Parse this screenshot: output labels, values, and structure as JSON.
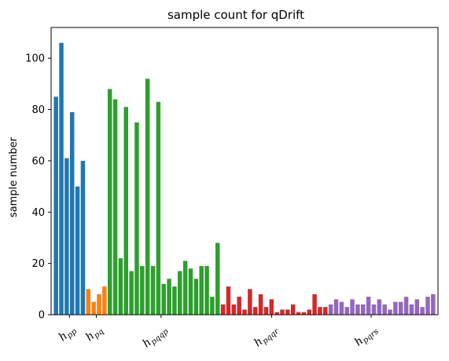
{
  "chart_data": {
    "type": "bar",
    "title": "sample count for qDrift",
    "xlabel": "",
    "ylabel": "sample number",
    "ylim": [
      0,
      112
    ],
    "yticks": [
      0,
      20,
      40,
      60,
      80,
      100
    ],
    "grid": false,
    "x_group_labels": [
      {
        "main": "h",
        "sub": "pp",
        "center_index": 2.5
      },
      {
        "main": "h",
        "sub": "pq",
        "center_index": 7.5
      },
      {
        "main": "h",
        "sub": "pqqp",
        "center_index": 19.5
      },
      {
        "main": "h",
        "sub": "pqqr",
        "center_index": 40
      },
      {
        "main": "h",
        "sub": "pqrs",
        "center_index": 58.5
      }
    ],
    "series": [
      {
        "color": "#1f77b4",
        "start_index": 0,
        "values": [
          85,
          106,
          61,
          79,
          50,
          60
        ]
      },
      {
        "color": "#ff7f0e",
        "start_index": 6,
        "values": [
          10,
          5,
          8,
          11
        ]
      },
      {
        "color": "#2ca02c",
        "start_index": 10,
        "values": [
          88,
          84,
          22,
          81,
          17,
          75,
          19,
          92,
          19,
          83,
          12,
          14,
          11,
          17,
          21,
          18,
          14,
          19,
          19,
          7,
          28
        ]
      },
      {
        "color": "#d62728",
        "start_index": 31,
        "values": [
          4,
          11,
          4,
          7,
          2,
          10,
          3,
          8,
          3,
          6,
          1,
          2,
          2,
          4,
          1,
          1,
          2,
          8,
          3,
          3
        ]
      },
      {
        "color": "#9467bd",
        "start_index": 51,
        "values": [
          4,
          6,
          5,
          3,
          6,
          4,
          4,
          7,
          4,
          6,
          4,
          2,
          5,
          5,
          7,
          4,
          6,
          3,
          7,
          8
        ]
      }
    ]
  }
}
